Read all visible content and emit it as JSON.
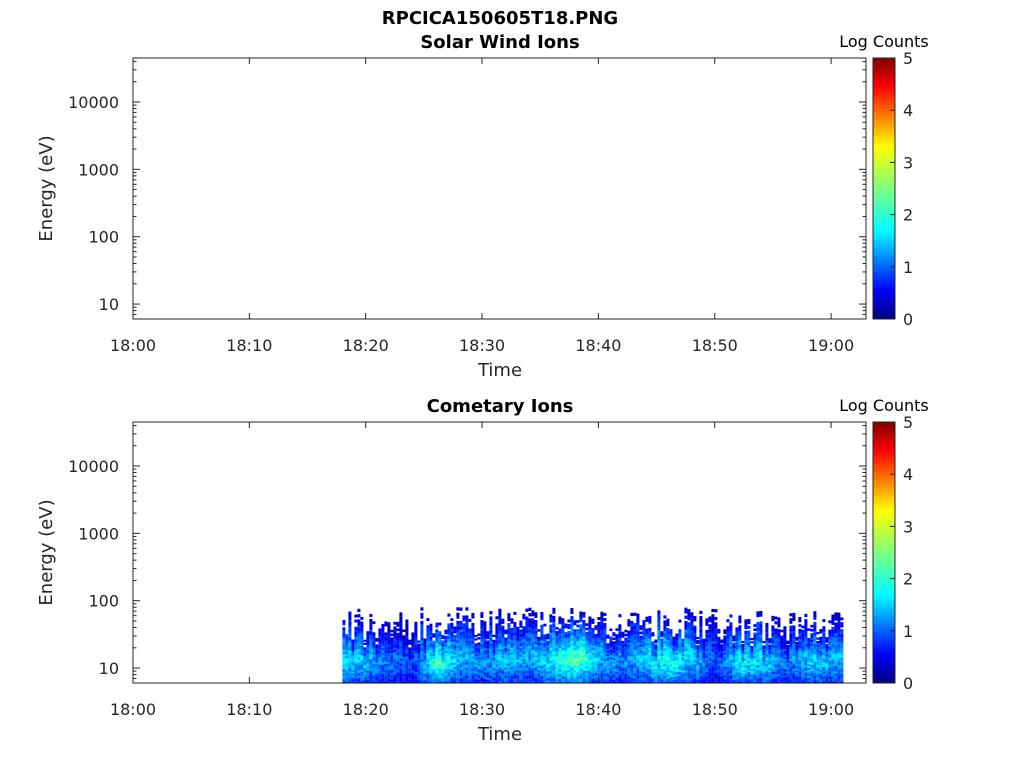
{
  "figure_title": "RPCICA150605T18.PNG",
  "chart_data": [
    {
      "type": "heatmap",
      "title": "Solar Wind Ions",
      "xlabel": "Time",
      "ylabel": "Energy (eV)",
      "x_ticks": [
        "18:00",
        "18:10",
        "18:20",
        "18:30",
        "18:40",
        "18:50",
        "19:00"
      ],
      "xlim": [
        "18:00",
        "19:03"
      ],
      "y_scale": "log",
      "y_ticks": [
        10,
        100,
        1000,
        10000
      ],
      "y_tick_labels": [
        "10",
        "100",
        "1000",
        "10000"
      ],
      "ylim": [
        6,
        45000
      ],
      "colorbar": {
        "label": "Log Counts",
        "range": [
          0,
          5
        ],
        "ticks": [
          "0",
          "1",
          "2",
          "3",
          "4",
          "5"
        ],
        "colormap": "jet"
      },
      "data_present": false,
      "data": []
    },
    {
      "type": "heatmap",
      "title": "Cometary Ions",
      "xlabel": "Time",
      "ylabel": "Energy (eV)",
      "x_ticks": [
        "18:00",
        "18:10",
        "18:20",
        "18:30",
        "18:40",
        "18:50",
        "19:00"
      ],
      "xlim": [
        "18:00",
        "19:03"
      ],
      "y_scale": "log",
      "y_ticks": [
        10,
        100,
        1000,
        10000
      ],
      "y_tick_labels": [
        "10",
        "100",
        "1000",
        "10000"
      ],
      "ylim": [
        6,
        45000
      ],
      "colorbar": {
        "label": "Log Counts",
        "range": [
          0,
          5
        ],
        "ticks": [
          "0",
          "1",
          "2",
          "3",
          "4",
          "5"
        ],
        "colormap": "jet"
      },
      "data_present": true,
      "data_start_time": "18:18",
      "data_end_time": "19:01",
      "energy_range_eV": [
        6,
        80
      ],
      "peak_log_counts": 2.5,
      "intensity_by_time": [
        {
          "time": "18:18",
          "log_counts": 1.8
        },
        {
          "time": "18:20",
          "log_counts": 1.6
        },
        {
          "time": "18:22",
          "log_counts": 1.2
        },
        {
          "time": "18:24",
          "log_counts": 1.0
        },
        {
          "time": "18:26",
          "log_counts": 2.3
        },
        {
          "time": "18:28",
          "log_counts": 1.6
        },
        {
          "time": "18:30",
          "log_counts": 1.4
        },
        {
          "time": "18:32",
          "log_counts": 1.7
        },
        {
          "time": "18:34",
          "log_counts": 1.5
        },
        {
          "time": "18:36",
          "log_counts": 1.9
        },
        {
          "time": "18:38",
          "log_counts": 2.4
        },
        {
          "time": "18:40",
          "log_counts": 1.6
        },
        {
          "time": "18:42",
          "log_counts": 1.3
        },
        {
          "time": "18:44",
          "log_counts": 1.8
        },
        {
          "time": "18:46",
          "log_counts": 2.1
        },
        {
          "time": "18:48",
          "log_counts": 1.7
        },
        {
          "time": "18:50",
          "log_counts": 1.0
        },
        {
          "time": "18:52",
          "log_counts": 1.9
        },
        {
          "time": "18:54",
          "log_counts": 1.8
        },
        {
          "time": "18:56",
          "log_counts": 1.2
        },
        {
          "time": "18:58",
          "log_counts": 1.7
        },
        {
          "time": "19:00",
          "log_counts": 1.6
        }
      ]
    }
  ]
}
